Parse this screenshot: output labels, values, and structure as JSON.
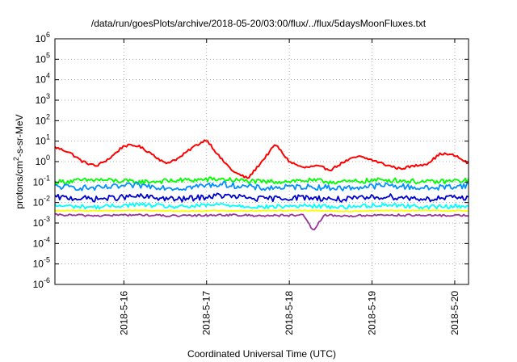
{
  "chart_data": {
    "type": "line",
    "title": "/data/run/goesPlots/archive/2018-05-20/03:00/flux/../flux/5daysMoonFluxes.txt",
    "xlabel": "Coordinated Universal Time (UTC)",
    "ylabel_parts": [
      "protons/cm",
      "2",
      "-s-sr-MeV"
    ],
    "yscale": "log",
    "ylim": [
      1e-06,
      1000000.0
    ],
    "xlim": [
      "2018-05-15 04:00",
      "2018-05-20 04:00"
    ],
    "grid": "dotted",
    "xticks": [
      "2018-5-16",
      "2018-5-17",
      "2018-5-18",
      "2018-5-19",
      "2018-5-20"
    ],
    "xtick_dates": [
      "2018-05-16",
      "2018-05-17",
      "2018-05-18",
      "2018-05-19",
      "2018-05-20"
    ],
    "yticks": [
      {
        "exp": -6
      },
      {
        "exp": -5
      },
      {
        "exp": -4
      },
      {
        "exp": -3
      },
      {
        "exp": -2
      },
      {
        "exp": -1
      },
      {
        "exp": 0
      },
      {
        "exp": 1
      },
      {
        "exp": 2
      },
      {
        "exp": 3
      },
      {
        "exp": 4
      },
      {
        "exp": 5
      },
      {
        "exp": 6
      }
    ],
    "series": [
      {
        "color": "#ff0000",
        "points": [
          [
            "2018-05-15 04:00",
            5.0
          ],
          [
            "2018-05-15 08:00",
            3.0
          ],
          [
            "2018-05-15 12:00",
            1.0
          ],
          [
            "2018-05-15 16:00",
            0.6
          ],
          [
            "2018-05-15 20:00",
            1.5
          ],
          [
            "2018-05-16 00:00",
            6.0
          ],
          [
            "2018-05-16 04:00",
            6.0
          ],
          [
            "2018-05-16 08:00",
            2.5
          ],
          [
            "2018-05-16 12:00",
            0.8
          ],
          [
            "2018-05-16 16:00",
            1.5
          ],
          [
            "2018-05-16 20:00",
            5.0
          ],
          [
            "2018-05-17 00:00",
            12.0
          ],
          [
            "2018-05-17 04:00",
            1.5
          ],
          [
            "2018-05-17 08:00",
            0.3
          ],
          [
            "2018-05-17 12:00",
            0.15
          ],
          [
            "2018-05-17 16:00",
            1.0
          ],
          [
            "2018-05-17 20:00",
            7.0
          ],
          [
            "2018-05-18 00:00",
            1.0
          ],
          [
            "2018-05-18 04:00",
            0.5
          ],
          [
            "2018-05-18 08:00",
            0.6
          ],
          [
            "2018-05-18 12:00",
            0.4
          ],
          [
            "2018-05-18 16:00",
            1.0
          ],
          [
            "2018-05-18 20:00",
            1.8
          ],
          [
            "2018-05-19 00:00",
            1.2
          ],
          [
            "2018-05-19 04:00",
            0.7
          ],
          [
            "2018-05-19 08:00",
            0.45
          ],
          [
            "2018-05-19 12:00",
            0.6
          ],
          [
            "2018-05-19 16:00",
            0.8
          ],
          [
            "2018-05-19 20:00",
            2.5
          ],
          [
            "2018-05-20 00:00",
            2.0
          ],
          [
            "2018-05-20 04:00",
            0.8
          ]
        ]
      },
      {
        "color": "#00ff00",
        "points": [
          [
            "2018-05-15 04:00",
            0.1
          ],
          [
            "2018-05-15 16:00",
            0.13
          ],
          [
            "2018-05-16 04:00",
            0.1
          ],
          [
            "2018-05-16 16:00",
            0.12
          ],
          [
            "2018-05-17 04:00",
            0.14
          ],
          [
            "2018-05-17 16:00",
            0.1
          ],
          [
            "2018-05-18 04:00",
            0.12
          ],
          [
            "2018-05-18 16:00",
            0.1
          ],
          [
            "2018-05-19 04:00",
            0.13
          ],
          [
            "2018-05-19 16:00",
            0.1
          ],
          [
            "2018-05-20 04:00",
            0.12
          ]
        ]
      },
      {
        "color": "#0090ff",
        "points": [
          [
            "2018-05-15 04:00",
            0.06
          ],
          [
            "2018-05-15 16:00",
            0.05
          ],
          [
            "2018-05-16 04:00",
            0.07
          ],
          [
            "2018-05-16 16:00",
            0.05
          ],
          [
            "2018-05-17 04:00",
            0.08
          ],
          [
            "2018-05-17 16:00",
            0.05
          ],
          [
            "2018-05-18 04:00",
            0.06
          ],
          [
            "2018-05-18 16:00",
            0.05
          ],
          [
            "2018-05-19 04:00",
            0.07
          ],
          [
            "2018-05-19 16:00",
            0.05
          ],
          [
            "2018-05-20 04:00",
            0.07
          ]
        ]
      },
      {
        "color": "#0000cc",
        "points": [
          [
            "2018-05-15 04:00",
            0.018
          ],
          [
            "2018-05-15 16:00",
            0.015
          ],
          [
            "2018-05-16 04:00",
            0.02
          ],
          [
            "2018-05-16 16:00",
            0.014
          ],
          [
            "2018-05-17 04:00",
            0.022
          ],
          [
            "2018-05-17 16:00",
            0.015
          ],
          [
            "2018-05-18 04:00",
            0.018
          ],
          [
            "2018-05-18 16:00",
            0.014
          ],
          [
            "2018-05-19 04:00",
            0.02
          ],
          [
            "2018-05-19 16:00",
            0.015
          ],
          [
            "2018-05-20 04:00",
            0.018
          ]
        ]
      },
      {
        "color": "#00ffff",
        "points": [
          [
            "2018-05-15 04:00",
            0.007
          ],
          [
            "2018-05-15 16:00",
            0.006
          ],
          [
            "2018-05-16 04:00",
            0.008
          ],
          [
            "2018-05-16 16:00",
            0.006
          ],
          [
            "2018-05-17 04:00",
            0.008
          ],
          [
            "2018-05-17 16:00",
            0.006
          ],
          [
            "2018-05-18 04:00",
            0.007
          ],
          [
            "2018-05-18 16:00",
            0.006
          ],
          [
            "2018-05-19 04:00",
            0.008
          ],
          [
            "2018-05-19 16:00",
            0.006
          ],
          [
            "2018-05-20 04:00",
            0.007
          ]
        ]
      },
      {
        "color": "#ffff00",
        "points": [
          [
            "2018-05-15 04:00",
            0.004
          ],
          [
            "2018-05-15 16:00",
            0.004
          ],
          [
            "2018-05-16 04:00",
            0.0042
          ],
          [
            "2018-05-16 16:00",
            0.0038
          ],
          [
            "2018-05-17 04:00",
            0.004
          ],
          [
            "2018-05-17 16:00",
            0.004
          ],
          [
            "2018-05-18 04:00",
            0.0042
          ],
          [
            "2018-05-18 16:00",
            0.0038
          ],
          [
            "2018-05-19 04:00",
            0.004
          ],
          [
            "2018-05-19 16:00",
            0.0041
          ],
          [
            "2018-05-20 04:00",
            0.004
          ]
        ]
      },
      {
        "color": "#993399",
        "points": [
          [
            "2018-05-15 04:00",
            0.0025
          ],
          [
            "2018-05-15 16:00",
            0.0023
          ],
          [
            "2018-05-16 04:00",
            0.0025
          ],
          [
            "2018-05-16 16:00",
            0.0022
          ],
          [
            "2018-05-17 04:00",
            0.0025
          ],
          [
            "2018-05-17 16:00",
            0.0023
          ],
          [
            "2018-05-18 04:00",
            0.0024
          ],
          [
            "2018-05-18 07:00",
            0.0004
          ],
          [
            "2018-05-18 10:00",
            0.0024
          ],
          [
            "2018-05-18 16:00",
            0.0022
          ],
          [
            "2018-05-19 04:00",
            0.0025
          ],
          [
            "2018-05-19 16:00",
            0.0023
          ],
          [
            "2018-05-20 04:00",
            0.0024
          ]
        ]
      }
    ]
  }
}
